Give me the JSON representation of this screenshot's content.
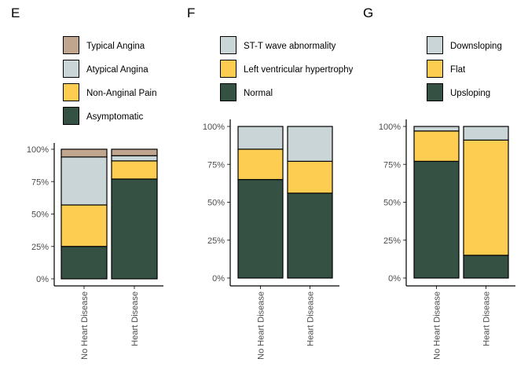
{
  "chart_data": [
    {
      "panel": "E",
      "type": "bar",
      "stacked": true,
      "percent": true,
      "categories": [
        "No Heart Disease",
        "Heart Disease"
      ],
      "legend_entries": [
        "Typical Angina",
        "Atypical Angina",
        "Non-Anginal Pain",
        "Asymptomatic"
      ],
      "series": [
        {
          "name": "Asymptomatic",
          "color": "#355143",
          "values": [
            25,
            77
          ]
        },
        {
          "name": "Non-Anginal Pain",
          "color": "#fdcd52",
          "values": [
            32,
            14
          ]
        },
        {
          "name": "Atypical Angina",
          "color": "#c9d5d6",
          "values": [
            37,
            4
          ]
        },
        {
          "name": "Typical Angina",
          "color": "#c0a68e",
          "values": [
            6,
            5
          ]
        }
      ],
      "yticks": [
        "0%",
        "25%",
        "50%",
        "75%",
        "100%"
      ],
      "ylim": [
        0,
        100
      ],
      "legend_position": "top"
    },
    {
      "panel": "F",
      "type": "bar",
      "stacked": true,
      "percent": true,
      "categories": [
        "No Heart Disease",
        "Heart Disease"
      ],
      "legend_entries": [
        "ST-T wave abnormality",
        "Left ventricular hypertrophy",
        "Normal"
      ],
      "series": [
        {
          "name": "Normal",
          "color": "#355143",
          "values": [
            65,
            56
          ]
        },
        {
          "name": "Left ventricular hypertrophy",
          "color": "#fdcd52",
          "values": [
            20,
            21
          ]
        },
        {
          "name": "ST-T wave abnormality",
          "color": "#c9d5d6",
          "values": [
            15,
            23
          ]
        }
      ],
      "yticks": [
        "0%",
        "25%",
        "50%",
        "75%",
        "100%"
      ],
      "ylim": [
        0,
        100
      ],
      "legend_position": "top"
    },
    {
      "panel": "G",
      "type": "bar",
      "stacked": true,
      "percent": true,
      "categories": [
        "No Heart Disease",
        "Heart Disease"
      ],
      "legend_entries": [
        "Downsloping",
        "Flat",
        "Upsloping"
      ],
      "series": [
        {
          "name": "Upsloping",
          "color": "#355143",
          "values": [
            77,
            15
          ]
        },
        {
          "name": "Flat",
          "color": "#fdcd52",
          "values": [
            20,
            76
          ]
        },
        {
          "name": "Downsloping",
          "color": "#c9d5d6",
          "values": [
            3,
            9
          ]
        }
      ],
      "yticks": [
        "0%",
        "25%",
        "50%",
        "75%",
        "100%"
      ],
      "ylim": [
        0,
        100
      ],
      "legend_position": "top"
    }
  ]
}
